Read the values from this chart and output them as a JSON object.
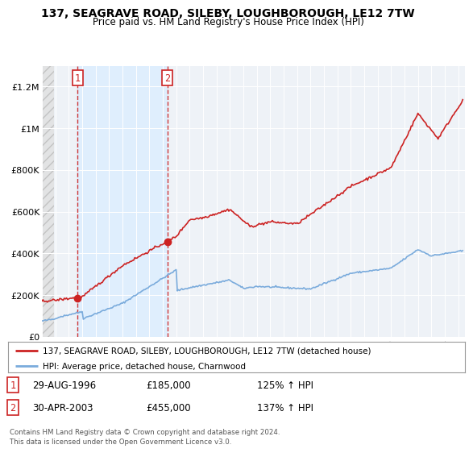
{
  "title": "137, SEAGRAVE ROAD, SILEBY, LOUGHBOROUGH, LE12 7TW",
  "subtitle": "Price paid vs. HM Land Registry's House Price Index (HPI)",
  "xlim": [
    1994.0,
    2025.5
  ],
  "ylim": [
    0,
    1300000
  ],
  "yticks": [
    0,
    200000,
    400000,
    600000,
    800000,
    1000000,
    1200000
  ],
  "ytick_labels": [
    "£0",
    "£200K",
    "£400K",
    "£600K",
    "£800K",
    "£1M",
    "£1.2M"
  ],
  "xticks": [
    1994,
    1995,
    1996,
    1997,
    1998,
    1999,
    2000,
    2001,
    2002,
    2003,
    2004,
    2005,
    2006,
    2007,
    2008,
    2009,
    2010,
    2011,
    2012,
    2013,
    2014,
    2015,
    2016,
    2017,
    2018,
    2019,
    2020,
    2021,
    2022,
    2023,
    2024,
    2025
  ],
  "hpi_line_color": "#7aabdc",
  "sale_line_color": "#cc2222",
  "sale_dot_color": "#cc2222",
  "background_color": "#ffffff",
  "plot_bg_color": "#eef2f7",
  "grid_color": "#ffffff",
  "shade_color": "#ddeeff",
  "sale1_x": 1996.66,
  "sale1_y": 185000,
  "sale1_label": "1",
  "sale2_x": 2003.33,
  "sale2_y": 455000,
  "sale2_label": "2",
  "legend_line1": "137, SEAGRAVE ROAD, SILEBY, LOUGHBOROUGH, LE12 7TW (detached house)",
  "legend_line2": "HPI: Average price, detached house, Charnwood",
  "annotation1_date": "29-AUG-1996",
  "annotation1_price": "£185,000",
  "annotation1_hpi": "125% ↑ HPI",
  "annotation2_date": "30-APR-2003",
  "annotation2_price": "£455,000",
  "annotation2_hpi": "137% ↑ HPI",
  "footer": "Contains HM Land Registry data © Crown copyright and database right 2024.\nThis data is licensed under the Open Government Licence v3.0."
}
